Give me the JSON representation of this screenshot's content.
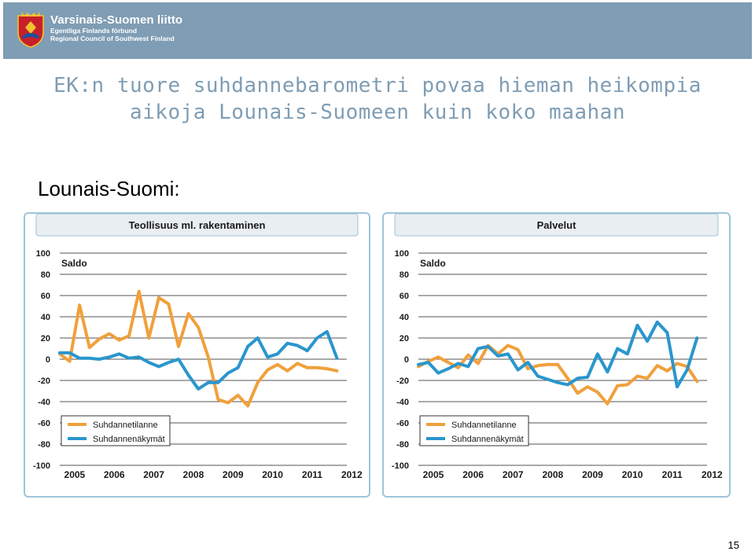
{
  "header": {
    "org_name": "Varsinais-Suomen liitto",
    "org_name_swedish": "Egentliga Finlands förbund",
    "org_name_english": "Regional Council of Southwest Finland"
  },
  "slide": {
    "title_line1": "EK:n tuore suhdannebarometri povaa hieman heikompia",
    "title_line2": "aikoja Lounais-Suomeen kuin koko maahan",
    "section_heading": "Lounais-Suomi:",
    "page_number": "15"
  },
  "colors": {
    "banner": "#7f9db4",
    "title_text": "#7f9db4",
    "panel_border": "#9fc4da",
    "panel_header_bg": "#e8eef2",
    "suhdannetilanne": "#f0a03c",
    "suhdannenakymat": "#2a96cd"
  },
  "chart_data": [
    {
      "type": "line",
      "title": "Teollisuus ml. rakentaminen",
      "ylabel": "Saldo",
      "ylim": [
        -100,
        100
      ],
      "yticks": [
        100,
        80,
        60,
        40,
        20,
        0,
        -20,
        -40,
        -60,
        -80,
        -100
      ],
      "xlim": [
        2005,
        2012.25
      ],
      "x_tick_labels": [
        "2005",
        "2006",
        "2007",
        "2008",
        "2009",
        "2010",
        "2011",
        "2012"
      ],
      "grid": true,
      "legend_position": "bottom-left",
      "series": [
        {
          "name": "Suhdannetilanne",
          "color": "#f0a03c",
          "x": [
            2005.0,
            2005.25,
            2005.5,
            2005.75,
            2006.0,
            2006.25,
            2006.5,
            2006.75,
            2007.0,
            2007.25,
            2007.5,
            2007.75,
            2008.0,
            2008.25,
            2008.5,
            2008.75,
            2009.0,
            2009.25,
            2009.5,
            2009.75,
            2010.0,
            2010.25,
            2010.5,
            2010.75,
            2011.0,
            2011.25,
            2011.5,
            2011.75,
            2012.0
          ],
          "y": [
            5,
            -2,
            51,
            11,
            19,
            24,
            18,
            22,
            64,
            20,
            58,
            52,
            12,
            43,
            30,
            2,
            -38,
            -41,
            -34,
            -44,
            -22,
            -10,
            -5,
            -11,
            -4,
            -8,
            -8,
            -9,
            -11
          ]
        },
        {
          "name": "Suhdannenäkymät",
          "color": "#2a96cd",
          "x": [
            2005.0,
            2005.25,
            2005.5,
            2005.75,
            2006.0,
            2006.25,
            2006.5,
            2006.75,
            2007.0,
            2007.25,
            2007.5,
            2007.75,
            2008.0,
            2008.25,
            2008.5,
            2008.75,
            2009.0,
            2009.25,
            2009.5,
            2009.75,
            2010.0,
            2010.25,
            2010.5,
            2010.75,
            2011.0,
            2011.25,
            2011.5,
            2011.75,
            2012.0
          ],
          "y": [
            6,
            6,
            1,
            1,
            0,
            2,
            5,
            1,
            2,
            -3,
            -7,
            -3,
            0,
            -15,
            -28,
            -22,
            -22,
            -13,
            -8,
            12,
            20,
            2,
            5,
            15,
            13,
            8,
            20,
            26,
            1
          ]
        }
      ]
    },
    {
      "type": "line",
      "title": "Palvelut",
      "ylabel": "Saldo",
      "ylim": [
        -100,
        100
      ],
      "yticks": [
        100,
        80,
        60,
        40,
        20,
        0,
        -20,
        -40,
        -60,
        -80,
        -100
      ],
      "xlim": [
        2005,
        2012.25
      ],
      "x_tick_labels": [
        "2005",
        "2006",
        "2007",
        "2008",
        "2009",
        "2010",
        "2011",
        "2012"
      ],
      "grid": true,
      "legend_position": "bottom-left",
      "series": [
        {
          "name": "Suhdannetilanne",
          "color": "#f0a03c",
          "x": [
            2005.0,
            2005.25,
            2005.5,
            2005.75,
            2006.0,
            2006.25,
            2006.5,
            2006.75,
            2007.0,
            2007.25,
            2007.5,
            2007.75,
            2008.0,
            2008.25,
            2008.5,
            2008.75,
            2009.0,
            2009.25,
            2009.5,
            2009.75,
            2010.0,
            2010.25,
            2010.5,
            2010.75,
            2011.0,
            2011.25,
            2011.5,
            2011.75,
            2012.0
          ],
          "y": [
            -7,
            -2,
            2,
            -3,
            -8,
            4,
            -4,
            13,
            5,
            13,
            9,
            -9,
            -6,
            -5,
            -5,
            -18,
            -32,
            -26,
            -31,
            -42,
            -25,
            -24,
            -16,
            -18,
            -6,
            -11,
            -4,
            -7,
            -21
          ]
        },
        {
          "name": "Suhdannenäkymät",
          "color": "#2a96cd",
          "x": [
            2005.0,
            2005.25,
            2005.5,
            2005.75,
            2006.0,
            2006.25,
            2006.5,
            2006.75,
            2007.0,
            2007.25,
            2007.5,
            2007.75,
            2008.0,
            2008.25,
            2008.5,
            2008.75,
            2009.0,
            2009.25,
            2009.5,
            2009.75,
            2010.0,
            2010.25,
            2010.5,
            2010.75,
            2011.0,
            2011.25,
            2011.5,
            2011.75,
            2012.0
          ],
          "y": [
            -5,
            -3,
            -13,
            -9,
            -4,
            -7,
            10,
            12,
            3,
            5,
            -10,
            -3,
            -16,
            -19,
            -22,
            -24,
            -18,
            -17,
            5,
            -12,
            10,
            5,
            32,
            17,
            35,
            25,
            -26,
            -10,
            20
          ]
        }
      ]
    }
  ]
}
